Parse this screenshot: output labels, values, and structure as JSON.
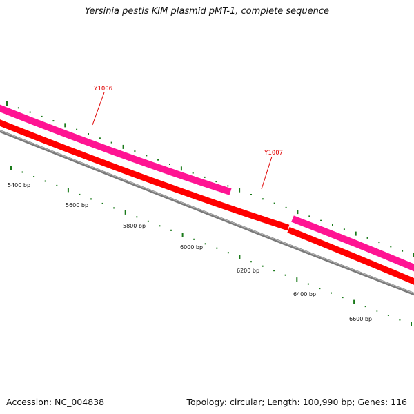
{
  "title": "Yersinia pestis KIM plasmid pMT-1, complete sequence",
  "footer": {
    "accession": "Accession: NC_004838",
    "summary": "Topology: circular; Length: 100,990 bp; Genes: 116"
  },
  "colors": {
    "backbone": "#7a7a7a",
    "forward_strand": "#ff0000",
    "cds": "#ff1493",
    "gene_label": "#e00000",
    "ticks": "#1a7a1a"
  },
  "scale_labels": [
    "5400 bp",
    "5600 bp",
    "5800 bp",
    "6000 bp",
    "6200 bp",
    "6400 bp",
    "6600 bp"
  ],
  "genes": [
    {
      "name": "Y1006"
    },
    {
      "name": "Y1007"
    }
  ]
}
